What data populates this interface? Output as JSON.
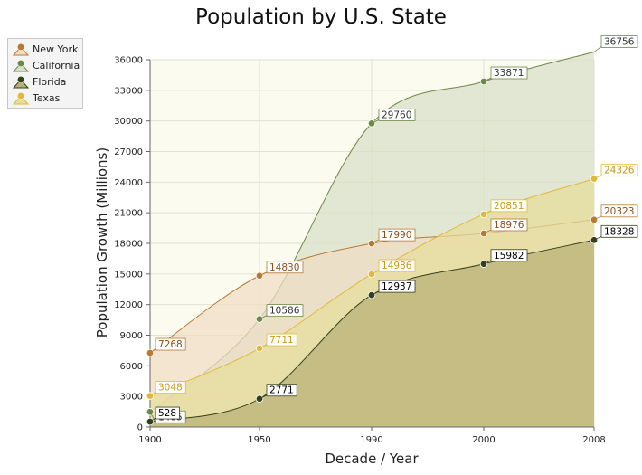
{
  "chart_data": {
    "type": "area",
    "title": "Population by U.S. State",
    "xlabel": "Decade / Year",
    "ylabel": "Population Growth (Millions)",
    "x": [
      1900,
      1950,
      1990,
      2000,
      2008
    ],
    "ylim": [
      0,
      36000
    ],
    "yticks": [
      0,
      3000,
      6000,
      9000,
      12000,
      15000,
      18000,
      21000,
      24000,
      27000,
      30000,
      33000,
      36000
    ],
    "grid": true,
    "legend": "top-left",
    "series": [
      {
        "name": "New York",
        "values": [
          7268,
          14830,
          17990,
          18976,
          20323
        ],
        "color": "#b87a33",
        "fill": "#f0dcc4",
        "label_color": "#8a4e1c"
      },
      {
        "name": "California",
        "values": [
          1485,
          10586,
          29760,
          33871,
          36756
        ],
        "color": "#6c8a45",
        "fill": "#d8dfc7",
        "label_color": "#333333"
      },
      {
        "name": "Florida",
        "values": [
          528,
          2771,
          12937,
          15982,
          18328
        ],
        "color": "#33401c",
        "fill": "#b7b077",
        "label_color": "#000000"
      },
      {
        "name": "Texas",
        "values": [
          3048,
          7711,
          14986,
          20851,
          24326
        ],
        "color": "#e0b93a",
        "fill": "#e6de9a",
        "label_color": "#c99a16"
      }
    ]
  }
}
